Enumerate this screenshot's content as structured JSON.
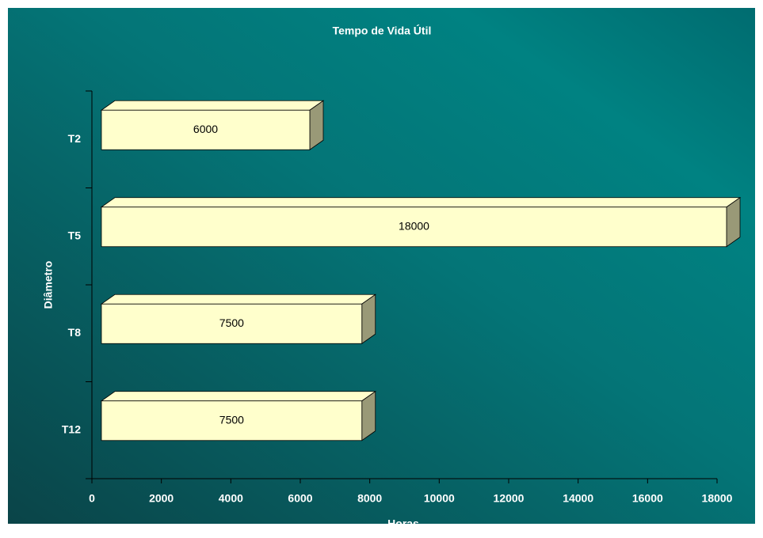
{
  "chart_data": {
    "type": "bar3d_horizontal",
    "title": "Tempo de Vida Útil",
    "x_label": "Horas",
    "y_label": "Diâmetro",
    "categories": [
      "T2",
      "T5",
      "T8",
      "T12"
    ],
    "values": [
      6000,
      18000,
      7500,
      7500
    ],
    "color": "#ffffcc",
    "xlim": [
      0,
      18000
    ],
    "xticks": [
      0,
      2000,
      4000,
      6000,
      8000,
      10000,
      12000,
      14000,
      16000,
      18000
    ]
  }
}
